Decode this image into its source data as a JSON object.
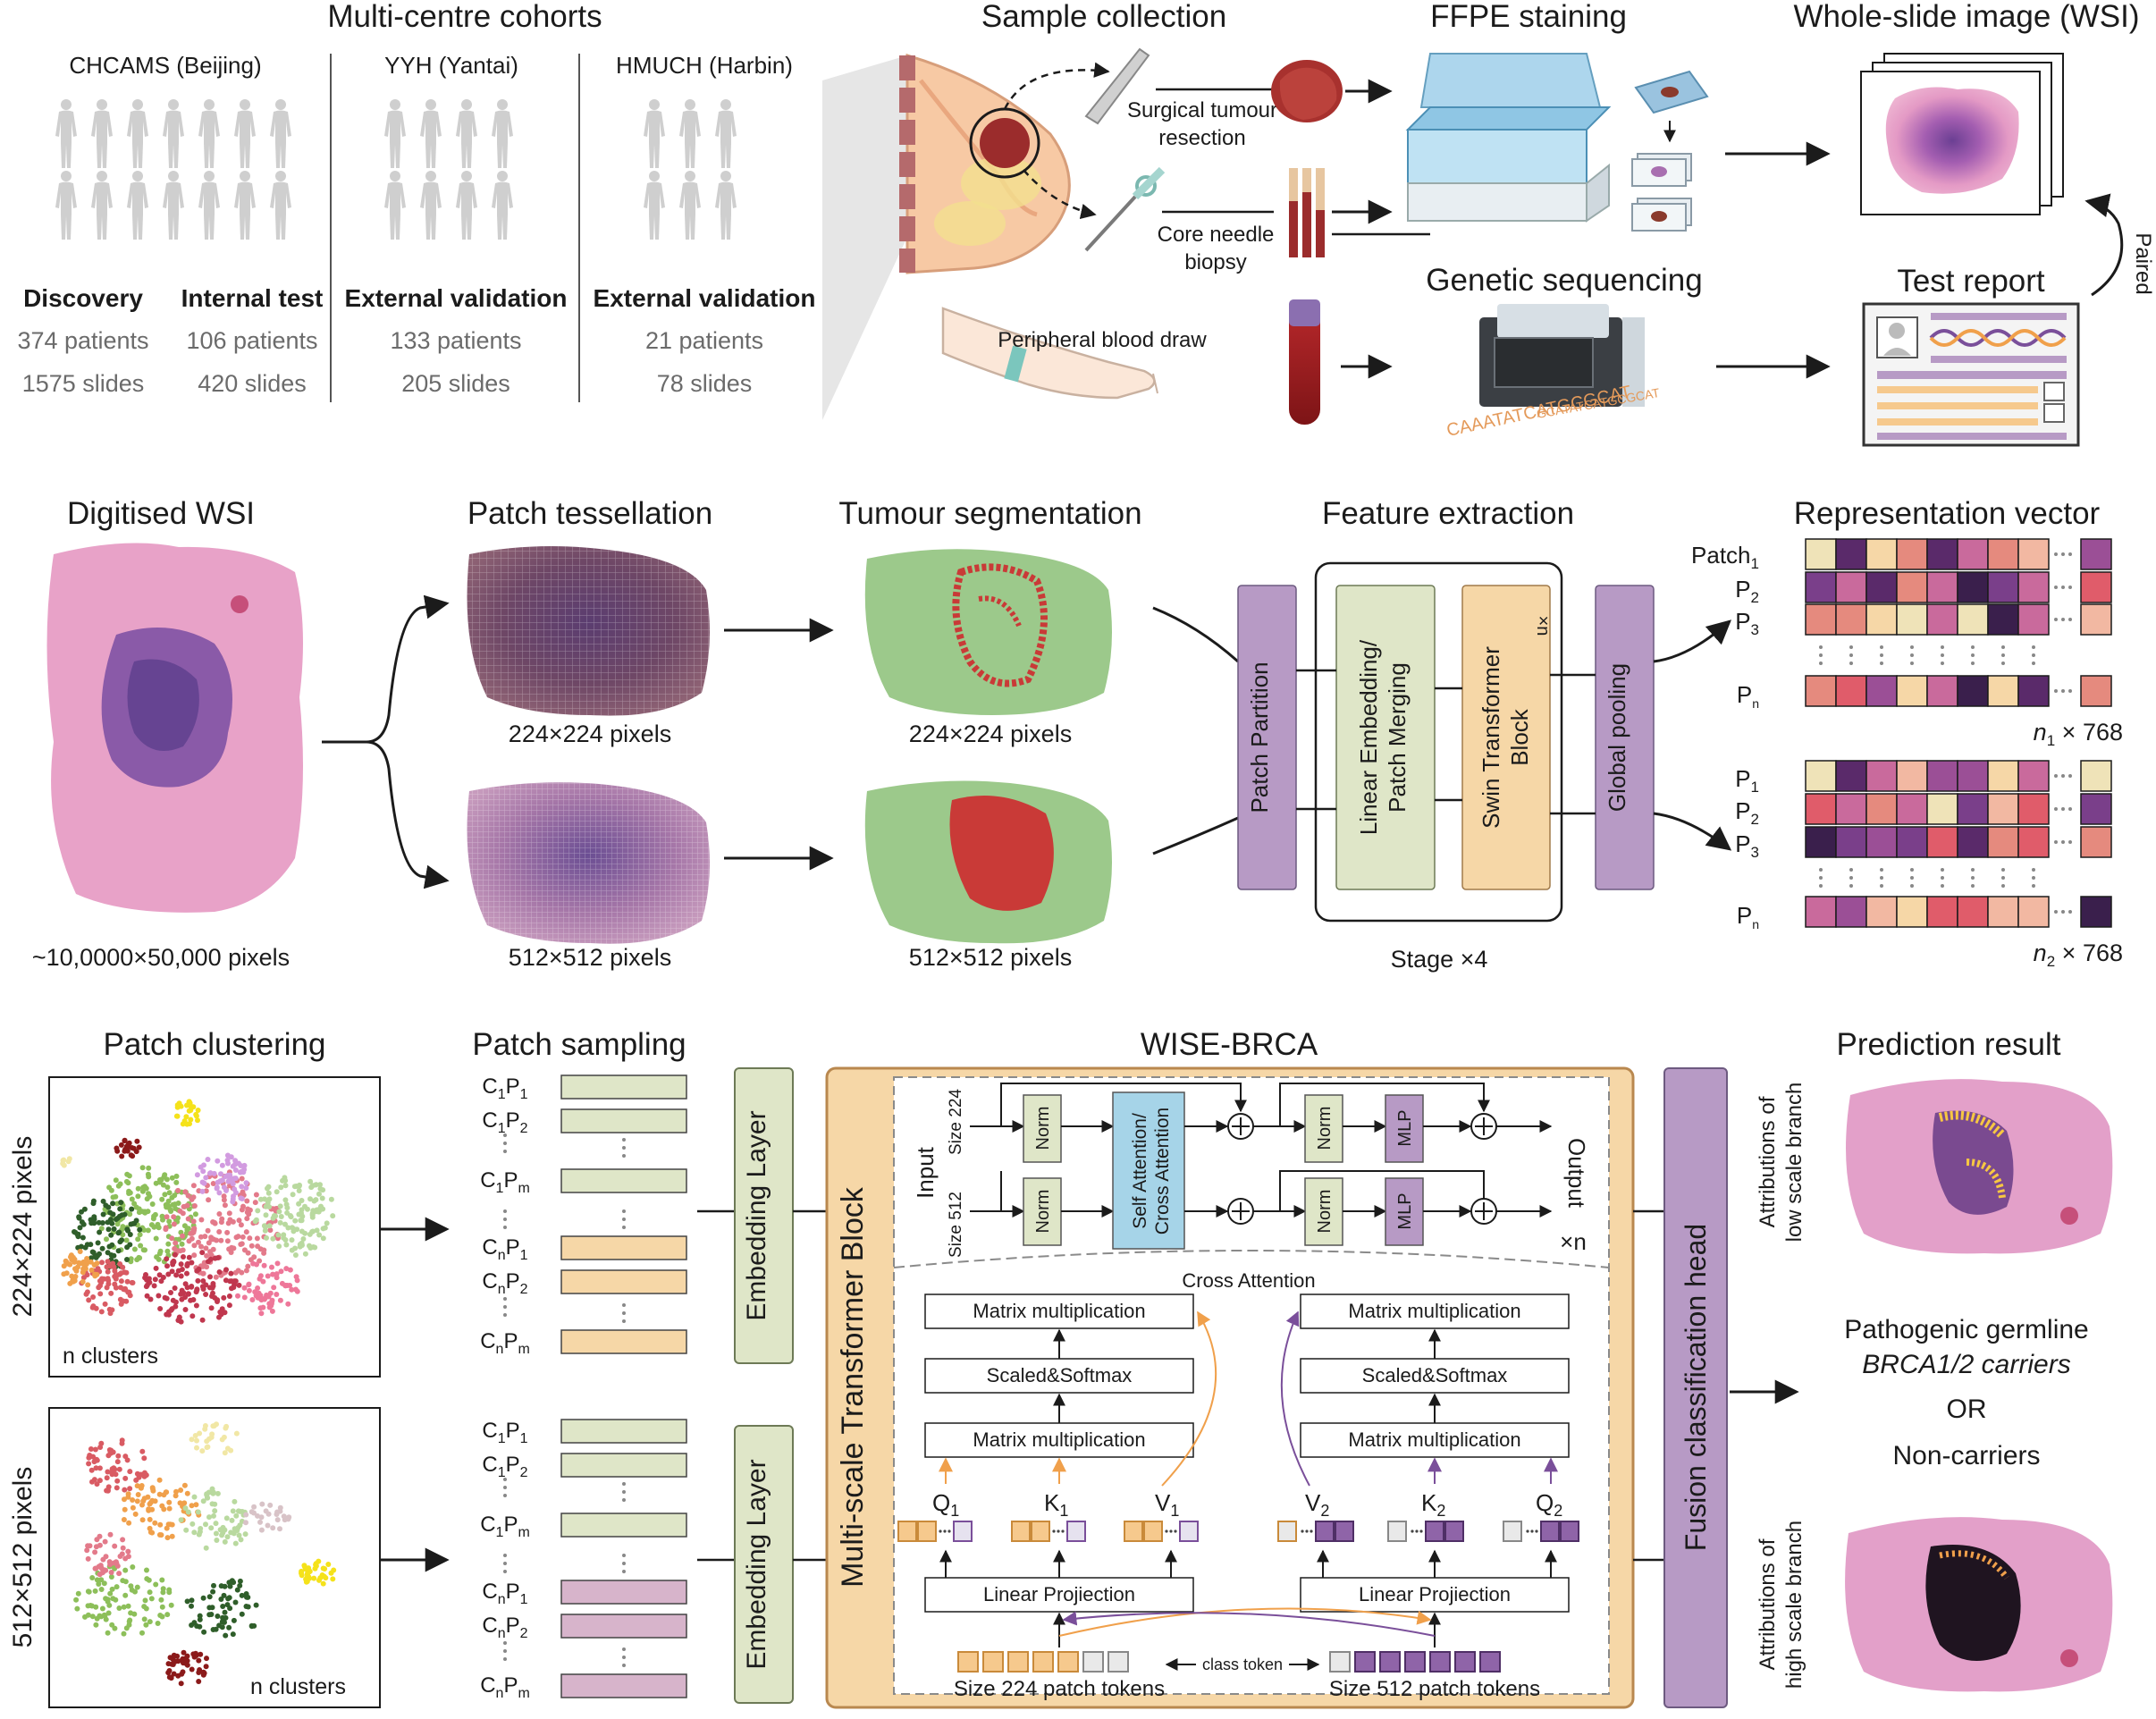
{
  "row1": {
    "cohorts_title": "Multi-centre cohorts",
    "cohorts": [
      {
        "site": "CHCAMS (Beijing)"
      },
      {
        "site": "YYH (Yantai)"
      },
      {
        "site": "HMUCH (Harbin)"
      }
    ],
    "groups": [
      {
        "name": "Discovery",
        "patients": "374 patients",
        "slides": "1575 slides"
      },
      {
        "name": "Internal test",
        "patients": "106 patients",
        "slides": "420 slides"
      },
      {
        "name": "External validation",
        "patients": "133 patients",
        "slides": "205 slides"
      },
      {
        "name": "External validation",
        "patients": "21 patients",
        "slides": "78 slides"
      }
    ],
    "sample_collection_title": "Sample collection",
    "surgical_l1": "Surgical tumour",
    "surgical_l2": "resection",
    "core_l1": "Core needle",
    "core_l2": "biopsy",
    "blood": "Peripheral blood draw",
    "ffpe_title": "FFPE staining",
    "wsi_title": "Whole-slide image (WSI)",
    "genetic_title": "Genetic sequencing",
    "dna_seq_1": "GCATATCATGCGCAT",
    "dna_seq_2": "CAAATATCATGCGCAT",
    "test_report_title": "Test report",
    "paired": "Paired"
  },
  "row2": {
    "digitised_title": "Digitised WSI",
    "digitised_caption": "~10,0000×50,000 pixels",
    "tessellation_title": "Patch tessellation",
    "tess_cap_224": "224×224 pixels",
    "tess_cap_512": "512×512 pixels",
    "segmentation_title": "Tumour segmentation",
    "seg_cap_224": "224×224 pixels",
    "seg_cap_512": "512×512 pixels",
    "feature_title": "Feature extraction",
    "patch_partition": "Patch Partition",
    "linear_embed_l1": "Linear Embedding/",
    "linear_embed_l2": "Patch Merging",
    "swin_l1": "Swin Transformer",
    "swin_l2": "Block",
    "times_n": "×n",
    "global_pooling": "Global pooling",
    "stage": "Stage ×4",
    "rep_title": "Representation vector",
    "rep_top_labels": [
      "Patch",
      "P",
      "P",
      "P"
    ],
    "rep_top_subs": [
      "1",
      "2",
      "3",
      "n"
    ],
    "rep_top_dim": "n",
    "rep_top_dim_sub": "1",
    "rep_top_dim_rest": " × 768",
    "rep_bottom_labels": [
      "P",
      "P",
      "P",
      "P"
    ],
    "rep_bottom_subs": [
      "1",
      "2",
      "3",
      "n"
    ],
    "rep_bottom_dim": "n",
    "rep_bottom_dim_sub": "2",
    "rep_bottom_dim_rest": " × 768"
  },
  "row3": {
    "clustering_title": "Patch clustering",
    "cluster_label_224": "224×224 pixels",
    "cluster_label_512": "512×512 pixels",
    "n_clusters": "n clusters",
    "sampling_title": "Patch sampling",
    "sampling_labels": [
      "C1P1",
      "C1P2",
      "C1Pm",
      "CnP1",
      "CnP2",
      "CnPm"
    ],
    "embedding_layer": "Embedding Layer",
    "wise_title": "WISE-BRCA",
    "msblock": "Multi-scale Transformer Block",
    "input": "Input",
    "size224": "Size 224",
    "size512": "Size 512",
    "norm": "Norm",
    "attn_l1": "Self Attention/",
    "attn_l2": "Cross Attention",
    "mlp": "MLP",
    "output": "Output",
    "times_n": "×n",
    "cross_attention": "Cross Attention",
    "matmul": "Matrix multiplication",
    "scaled": "Scaled&Softmax",
    "linear_proj": "Linear Projiection",
    "q": "Q",
    "k": "K",
    "v": "V",
    "size224_tokens": "Size 224 patch tokens",
    "class_token": "class token",
    "size512_tokens": "Size 512 patch tokens",
    "fusion_head": "Fusion classification head",
    "prediction_title": "Prediction result",
    "attr_low_l1": "Attributions of",
    "attr_low_l2": "low scale branch",
    "attr_high_l1": "Attributions of",
    "attr_high_l2": "high scale branch",
    "result_l1": "Pathogenic germline",
    "result_l2": "BRCA1/2 carriers",
    "result_or": "OR",
    "result_l3": "Non-carriers"
  },
  "colors": {
    "orange_box": "#f6d7a7",
    "green_box": "#dfe6c8",
    "purple_box": "#b79ac5",
    "blue_box": "#a6d4e8",
    "pink_box": "#d7b4cb",
    "tumour_red": "#c93a37",
    "tissue_green": "#9cc98b",
    "he_pink": "#dc8ab8"
  }
}
